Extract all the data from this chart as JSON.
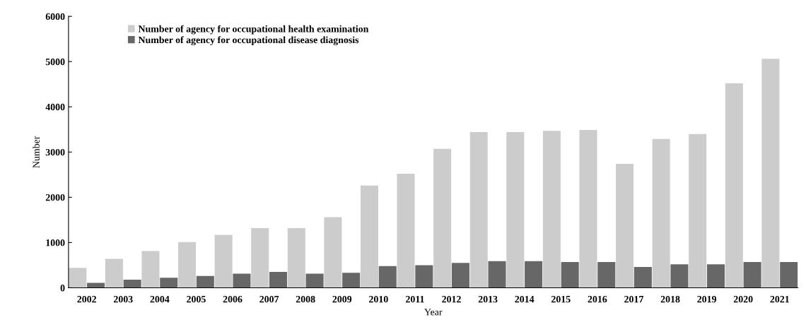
{
  "chart_data": {
    "type": "bar",
    "xlabel": "Year",
    "ylabel": "Number",
    "categories": [
      "2002",
      "2003",
      "2004",
      "2005",
      "2006",
      "2007",
      "2008",
      "2009",
      "2010",
      "2011",
      "2012",
      "2013",
      "2014",
      "2015",
      "2016",
      "2017",
      "2018",
      "2019",
      "2020",
      "2021"
    ],
    "series": [
      {
        "name": "Number of agency for occupational health examination",
        "color": "#cccccc",
        "values": [
          440,
          640,
          810,
          1010,
          1170,
          1320,
          1320,
          1560,
          2260,
          2520,
          3070,
          3440,
          3440,
          3470,
          3490,
          2740,
          3290,
          3400,
          4520,
          5060
        ]
      },
      {
        "name": "Number of agency for occupational disease diagnosis",
        "color": "#676767",
        "values": [
          110,
          180,
          220,
          260,
          310,
          350,
          310,
          330,
          480,
          500,
          550,
          590,
          590,
          570,
          570,
          460,
          520,
          520,
          570,
          570
        ]
      }
    ],
    "ylim": [
      0,
      6000
    ],
    "yticks": [
      0,
      1000,
      2000,
      3000,
      4000,
      5000,
      6000
    ],
    "grid": false,
    "legend": "top left"
  }
}
